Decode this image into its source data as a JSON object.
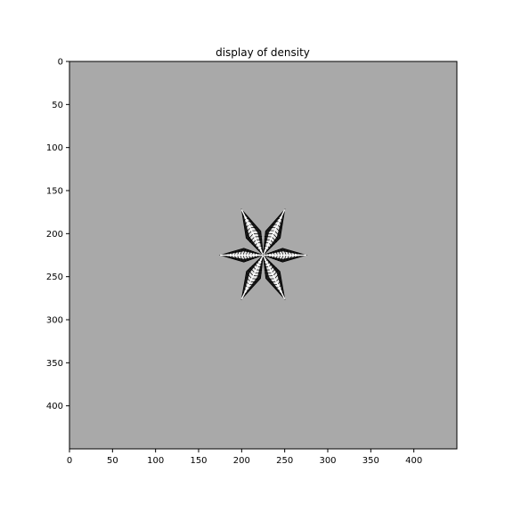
{
  "chart_data": {
    "type": "heatmap",
    "title": "display of density",
    "xlabel": "",
    "ylabel": "",
    "xlim": [
      0,
      450
    ],
    "ylim": [
      450,
      0
    ],
    "x_ticks": [
      0,
      50,
      100,
      150,
      200,
      250,
      300,
      350,
      400
    ],
    "y_ticks": [
      0,
      50,
      100,
      150,
      200,
      250,
      300,
      350,
      400
    ],
    "background_value_color": "#a9a9a9",
    "colormap": "gray",
    "feature": {
      "kind": "six-pointed star (snowflake density pattern)",
      "center": [
        225,
        225
      ],
      "arm_tips": [
        [
          275,
          225
        ],
        [
          250,
          172
        ],
        [
          200,
          172
        ],
        [
          175,
          225
        ],
        [
          200,
          276
        ],
        [
          250,
          276
        ]
      ],
      "fill_color": "#ffffff",
      "edge_color": "#000000"
    }
  }
}
